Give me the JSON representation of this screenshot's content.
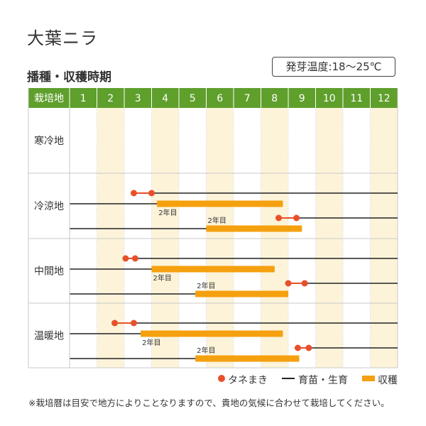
{
  "title": "大葉ニラ",
  "temperature_label": "発芽温度:18～25℃",
  "subtitle": "播種・収穫時期",
  "colors": {
    "header_green": "#5f9f2c",
    "sow_red": "#e8502a",
    "harvest_orange": "#f5a00e",
    "stripe_cream": "#fdf3d9",
    "line_black": "#222222"
  },
  "legend": {
    "sow": "タネまき",
    "grow": "育苗・生育",
    "harvest": "収穫"
  },
  "note": "※栽培暦は目安で地方によりことなりますので、貴地の気候に合わせて栽培してください。",
  "chart_data": {
    "type": "table",
    "header_label": "栽培地",
    "months": [
      "1",
      "2",
      "3",
      "4",
      "5",
      "6",
      "7",
      "8",
      "9",
      "10",
      "11",
      "12"
    ],
    "regions": [
      {
        "name": "寒冷地",
        "rows": []
      },
      {
        "name": "冷涼地",
        "rows": [
          {
            "sow": [
              3.35,
              4.0
            ],
            "grow_from": 4.0,
            "grow_to": 12.5,
            "harvest": [
              4.2,
              8.8
            ],
            "harvest_label": "2年目",
            "lower": false
          },
          {
            "sow": [
              8.65,
              9.3
            ],
            "grow_from": 9.3,
            "grow_to": 12.5,
            "harvest": [
              6.0,
              9.5
            ],
            "harvest_label": "2年目",
            "lower": true
          }
        ]
      },
      {
        "name": "中間地",
        "rows": [
          {
            "sow": [
              3.05,
              3.4
            ],
            "grow_from": 3.4,
            "grow_to": 12.5,
            "harvest": [
              4.0,
              8.5
            ],
            "harvest_label": "2年目",
            "lower": false
          },
          {
            "sow": [
              9.0,
              9.6
            ],
            "grow_from": 9.6,
            "grow_to": 12.5,
            "harvest": [
              5.6,
              9.0
            ],
            "harvest_label": "2年目",
            "lower": true
          }
        ]
      },
      {
        "name": "温暖地",
        "rows": [
          {
            "sow": [
              2.65,
              3.35
            ],
            "grow_from": 3.35,
            "grow_to": 12.5,
            "harvest": [
              3.6,
              8.8
            ],
            "harvest_label": "2年目",
            "lower": false
          },
          {
            "sow": [
              9.35,
              9.75
            ],
            "grow_from": 9.75,
            "grow_to": 12.5,
            "harvest": [
              5.6,
              9.4
            ],
            "harvest_label": "2年目",
            "lower": true
          }
        ]
      }
    ]
  }
}
